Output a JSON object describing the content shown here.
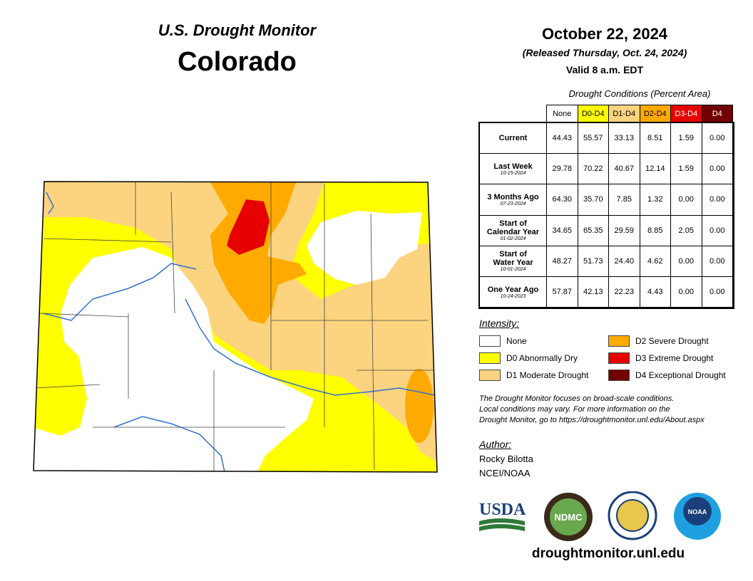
{
  "header": {
    "title": "U.S. Drought Monitor",
    "state": "Colorado"
  },
  "dates": {
    "date": "October 22, 2024",
    "released": "(Released Thursday, Oct. 24, 2024)",
    "valid": "Valid 8 a.m. EDT"
  },
  "table": {
    "caption": "Drought Conditions (Percent Area)",
    "columns": [
      {
        "name": "None",
        "color": "#ffffff",
        "text": "#000000"
      },
      {
        "name": "D0-D4",
        "color": "#ffff00",
        "text": "#000000"
      },
      {
        "name": "D1-D4",
        "color": "#fcd37f",
        "text": "#000000"
      },
      {
        "name": "D2-D4",
        "color": "#ffaa00",
        "text": "#000000"
      },
      {
        "name": "D3-D4",
        "color": "#e60000",
        "text": "#ffffff"
      },
      {
        "name": "D4",
        "color": "#730000",
        "text": "#ffffff"
      }
    ],
    "rows": [
      {
        "label": [
          "Current"
        ],
        "cells": [
          "44.43",
          "55.57",
          "33.13",
          "8.51",
          "1.59",
          "0.00"
        ]
      },
      {
        "label": [
          "Last Week"
        ],
        "date": "10-15-2024",
        "cells": [
          "29.78",
          "70.22",
          "40.67",
          "12.14",
          "1.59",
          "0.00"
        ]
      },
      {
        "label": [
          "3 Months Ago"
        ],
        "date": "07-23-2024",
        "cells": [
          "64.30",
          "35.70",
          "7.85",
          "1.32",
          "0.00",
          "0.00"
        ]
      },
      {
        "label": [
          "Start of",
          "Calendar Year"
        ],
        "date": "01-02-2024",
        "cells": [
          "34.65",
          "65.35",
          "29.59",
          "8.85",
          "2.05",
          "0.00"
        ]
      },
      {
        "label": [
          "Start of",
          "Water Year"
        ],
        "date": "10-01-2024",
        "cells": [
          "48.27",
          "51.73",
          "24.40",
          "4.62",
          "0.00",
          "0.00"
        ]
      },
      {
        "label": [
          "One Year Ago"
        ],
        "date": "10-24-2023",
        "cells": [
          "57.87",
          "42.13",
          "22.23",
          "4.43",
          "0.00",
          "0.00"
        ]
      }
    ]
  },
  "legend": {
    "title": "Intensity:",
    "items": [
      {
        "label": "None",
        "color": "#ffffff"
      },
      {
        "label": "D0 Abnormally Dry",
        "color": "#ffff00"
      },
      {
        "label": "D1 Moderate Drought",
        "color": "#fcd37f"
      },
      {
        "label": "D2 Severe Drought",
        "color": "#ffaa00"
      },
      {
        "label": "D3 Extreme Drought",
        "color": "#e60000"
      },
      {
        "label": "D4 Exceptional Drought",
        "color": "#730000"
      }
    ]
  },
  "note": [
    "The Drought Monitor focuses on broad-scale conditions.",
    "Local conditions may vary. For more information on the",
    "Drought Monitor, go to https://droughtmonitor.unl.edu/About.aspx"
  ],
  "author": {
    "title": "Author:",
    "name": "Rocky Bilotta",
    "org": "NCEI/NOAA"
  },
  "logos": [
    "USDA",
    "NDMC",
    "NOAA"
  ],
  "footer": "droughtmonitor.unl.edu"
}
